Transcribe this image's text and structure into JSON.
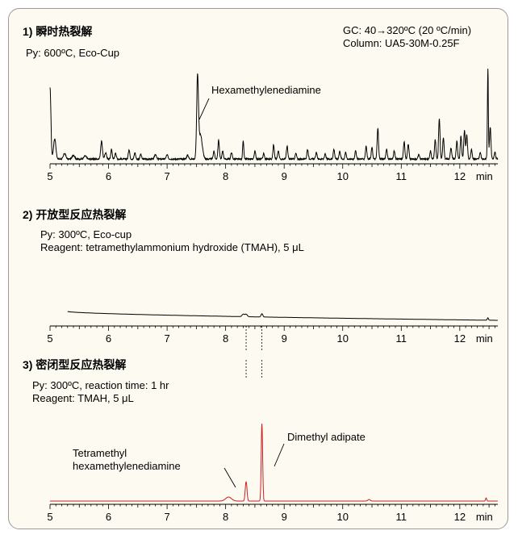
{
  "chart_data": [
    {
      "type": "line",
      "title": "1) 瞬时热裂解",
      "conditions": [
        "Py: 600ºC, Eco-Cup"
      ],
      "gc_info": [
        "GC: 40→320ºC (20 ºC/min)",
        "Column: UA5-30M-0.25F"
      ],
      "xlim": [
        5,
        12.65
      ],
      "xticks": [
        5,
        6,
        7,
        8,
        9,
        10,
        11,
        12
      ],
      "xunit": "min",
      "line_color": "#000000",
      "baseline": 1,
      "peaks": [
        {
          "x": 5.0,
          "h": 88,
          "w": 0.015
        },
        {
          "x": 5.08,
          "h": 25,
          "w": 0.02
        },
        {
          "x": 5.25,
          "h": 7,
          "w": 0.02
        },
        {
          "x": 5.4,
          "h": 5,
          "w": 0.02
        },
        {
          "x": 5.6,
          "h": 4,
          "w": 0.02
        },
        {
          "x": 5.88,
          "h": 22,
          "w": 0.015
        },
        {
          "x": 5.95,
          "h": 8,
          "w": 0.015
        },
        {
          "x": 6.05,
          "h": 12,
          "w": 0.012
        },
        {
          "x": 6.12,
          "h": 8,
          "w": 0.012
        },
        {
          "x": 6.35,
          "h": 12,
          "w": 0.012
        },
        {
          "x": 6.45,
          "h": 8,
          "w": 0.012
        },
        {
          "x": 6.55,
          "h": 6,
          "w": 0.012
        },
        {
          "x": 6.8,
          "h": 6,
          "w": 0.015
        },
        {
          "x": 7.0,
          "h": 5,
          "w": 0.015
        },
        {
          "x": 7.35,
          "h": 5,
          "w": 0.015
        },
        {
          "x": 7.52,
          "h": 98,
          "w": 0.015
        },
        {
          "x": 7.57,
          "h": 30,
          "w": 0.03
        },
        {
          "x": 7.8,
          "h": 10,
          "w": 0.012
        },
        {
          "x": 7.88,
          "h": 24,
          "w": 0.012
        },
        {
          "x": 7.95,
          "h": 10,
          "w": 0.012
        },
        {
          "x": 8.1,
          "h": 8,
          "w": 0.012
        },
        {
          "x": 8.3,
          "h": 22,
          "w": 0.01
        },
        {
          "x": 8.5,
          "h": 10,
          "w": 0.012
        },
        {
          "x": 8.65,
          "h": 7,
          "w": 0.012
        },
        {
          "x": 8.82,
          "h": 18,
          "w": 0.012
        },
        {
          "x": 8.9,
          "h": 10,
          "w": 0.012
        },
        {
          "x": 9.05,
          "h": 16,
          "w": 0.012
        },
        {
          "x": 9.2,
          "h": 7,
          "w": 0.012
        },
        {
          "x": 9.4,
          "h": 12,
          "w": 0.012
        },
        {
          "x": 9.55,
          "h": 8,
          "w": 0.012
        },
        {
          "x": 9.7,
          "h": 6,
          "w": 0.012
        },
        {
          "x": 9.85,
          "h": 12,
          "w": 0.012
        },
        {
          "x": 9.95,
          "h": 10,
          "w": 0.012
        },
        {
          "x": 10.05,
          "h": 8,
          "w": 0.012
        },
        {
          "x": 10.22,
          "h": 10,
          "w": 0.012
        },
        {
          "x": 10.4,
          "h": 16,
          "w": 0.012
        },
        {
          "x": 10.5,
          "h": 14,
          "w": 0.012
        },
        {
          "x": 10.6,
          "h": 38,
          "w": 0.012
        },
        {
          "x": 10.75,
          "h": 12,
          "w": 0.012
        },
        {
          "x": 10.88,
          "h": 10,
          "w": 0.012
        },
        {
          "x": 11.05,
          "h": 22,
          "w": 0.012
        },
        {
          "x": 11.12,
          "h": 18,
          "w": 0.012
        },
        {
          "x": 11.3,
          "h": 6,
          "w": 0.012
        },
        {
          "x": 11.5,
          "h": 10,
          "w": 0.012
        },
        {
          "x": 11.58,
          "h": 24,
          "w": 0.012
        },
        {
          "x": 11.65,
          "h": 50,
          "w": 0.012
        },
        {
          "x": 11.72,
          "h": 26,
          "w": 0.012
        },
        {
          "x": 11.85,
          "h": 14,
          "w": 0.012
        },
        {
          "x": 11.95,
          "h": 22,
          "w": 0.012
        },
        {
          "x": 12.02,
          "h": 28,
          "w": 0.012
        },
        {
          "x": 12.08,
          "h": 36,
          "w": 0.012
        },
        {
          "x": 12.12,
          "h": 30,
          "w": 0.012
        },
        {
          "x": 12.2,
          "h": 12,
          "w": 0.012
        },
        {
          "x": 12.35,
          "h": 8,
          "w": 0.012
        },
        {
          "x": 12.48,
          "h": 112,
          "w": 0.008
        },
        {
          "x": 12.52,
          "h": 40,
          "w": 0.012
        },
        {
          "x": 12.6,
          "h": 8,
          "w": 0.012
        }
      ],
      "annotations": [
        {
          "text": "Hexamethylenediamine",
          "x": 7.52
        }
      ]
    },
    {
      "type": "line",
      "title": "2) 开放型反应热裂解",
      "conditions": [
        "Py: 300ºC, Eco-cup",
        "Reagent:  tetramethylammonium hydroxide (TMAH), 5 μL"
      ],
      "xlim": [
        5,
        12.65
      ],
      "xticks": [
        5,
        6,
        7,
        8,
        9,
        10,
        11,
        12
      ],
      "xunit": "min",
      "line_color": "#000000",
      "drift": {
        "x_start": 5.3,
        "start": 14,
        "end": 3
      },
      "peaks": [
        {
          "x": 8.3,
          "h": 3,
          "w": 0.02
        },
        {
          "x": 8.35,
          "h": 3,
          "w": 0.02
        },
        {
          "x": 8.62,
          "h": 4,
          "w": 0.015
        },
        {
          "x": 12.48,
          "h": 3,
          "w": 0.01
        }
      ],
      "markers": [
        8.35,
        8.62
      ]
    },
    {
      "type": "line",
      "title": "3) 密闭型反应热裂解",
      "conditions": [
        "Py: 300ºC, reaction time: 1 hr",
        "Reagent: TMAH, 5 μL"
      ],
      "xlim": [
        5,
        12.65
      ],
      "xticks": [
        5,
        6,
        7,
        8,
        9,
        10,
        11,
        12
      ],
      "xunit": "min",
      "line_color": "#cc1f1f",
      "baseline": 0,
      "peaks": [
        {
          "x": 8.05,
          "h": 5,
          "w": 0.05
        },
        {
          "x": 8.35,
          "h": 24,
          "w": 0.015
        },
        {
          "x": 8.62,
          "h": 96,
          "w": 0.012
        },
        {
          "x": 10.45,
          "h": 2,
          "w": 0.02
        },
        {
          "x": 12.45,
          "h": 4,
          "w": 0.01
        }
      ],
      "markers": [
        8.35,
        8.62
      ],
      "annotations": [
        {
          "text": "Tetramethyl\nhexamethylenediamine",
          "x": 8.35
        },
        {
          "text": "Dimethyl adipate",
          "x": 8.62
        }
      ]
    }
  ]
}
